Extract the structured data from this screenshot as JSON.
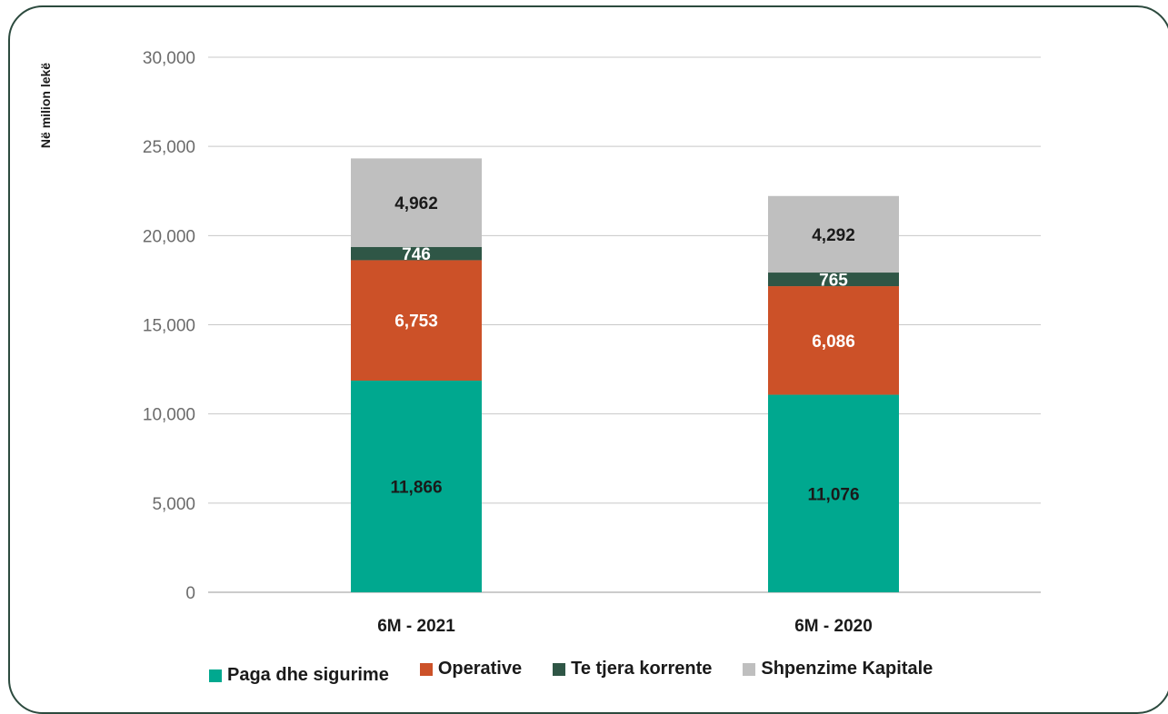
{
  "chart_data": {
    "type": "bar",
    "stacked": true,
    "ylabel": "Në milion lekë",
    "xlabel": "",
    "ylim": [
      0,
      30000
    ],
    "yticks": [
      "0",
      "5,000",
      "10,000",
      "15,000",
      "20,000",
      "25,000",
      "30,000"
    ],
    "ytick_values": [
      0,
      5000,
      10000,
      15000,
      20000,
      25000,
      30000
    ],
    "categories": [
      "6M - 2021",
      "6M - 2020"
    ],
    "series": [
      {
        "name": "Paga dhe sigurime",
        "values": [
          11866,
          11076
        ],
        "labels": [
          "11,866",
          "11,076"
        ],
        "color": "#00a88f",
        "label_color": "#1a1a1a"
      },
      {
        "name": "Operative",
        "values": [
          6753,
          6086
        ],
        "labels": [
          "6,753",
          "6,086"
        ],
        "color": "#cc5128",
        "label_color": "#ffffff"
      },
      {
        "name": "Te tjera korrente",
        "values": [
          746,
          765
        ],
        "labels": [
          "746",
          "765"
        ],
        "color": "#2f5646",
        "label_color": "#ffffff"
      },
      {
        "name": "Shpenzime Kapitale",
        "values": [
          4962,
          4292
        ],
        "labels": [
          "4,962",
          "4,292"
        ],
        "color": "#bfbfbf",
        "label_color": "#1a1a1a"
      }
    ],
    "grid": true,
    "legend_position": "bottom"
  }
}
